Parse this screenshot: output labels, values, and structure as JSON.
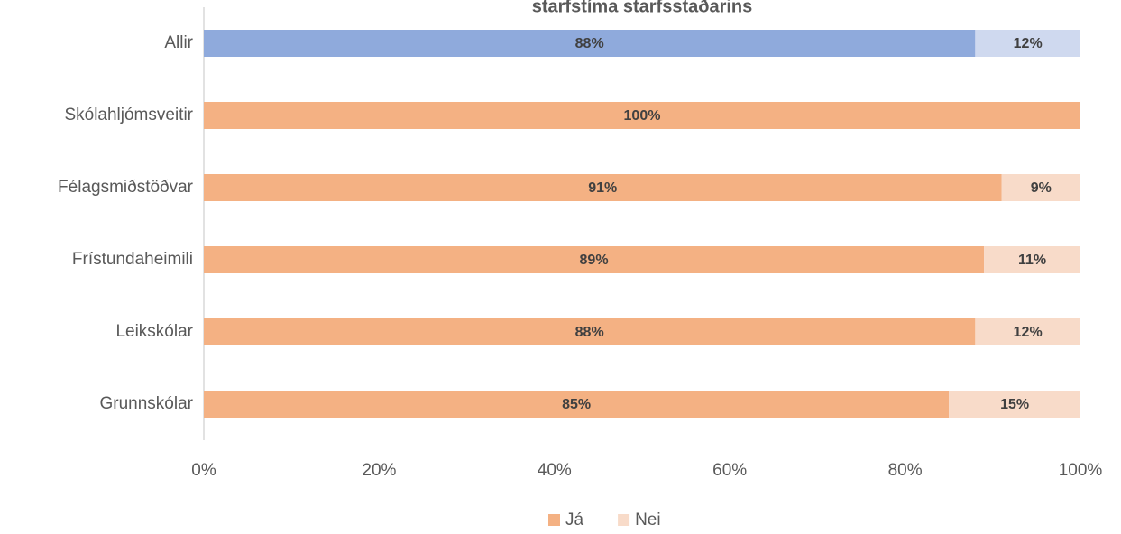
{
  "chart_data": {
    "type": "stacked_barh",
    "title": "starfstíma starfsstaðarins",
    "categories": [
      "Allir",
      "Skólahljómsveitir",
      "Félagsmiðstöðvar",
      "Frístundaheimili",
      "Leikskólar",
      "Grunnskólar"
    ],
    "series": [
      {
        "name": "Já",
        "color": "#f4b183",
        "colors": [
          "#8faadc",
          "#f4b183",
          "#f4b183",
          "#f4b183",
          "#f4b183",
          "#f4b183"
        ],
        "values": [
          88,
          100,
          91,
          89,
          88,
          85
        ],
        "value_labels": [
          "88%",
          "100%",
          "91%",
          "89%",
          "88%",
          "85%"
        ]
      },
      {
        "name": "Nei",
        "color": "#f8dbc9",
        "colors": [
          "#cfd9ef",
          "#f8dbc9",
          "#f8dbc9",
          "#f8dbc9",
          "#f8dbc9",
          "#f8dbc9"
        ],
        "values": [
          12,
          0,
          9,
          11,
          12,
          15
        ],
        "value_labels": [
          "12%",
          null,
          "9%",
          "11%",
          "12%",
          "15%"
        ]
      }
    ],
    "xlim": [
      0,
      100
    ],
    "xticks": [
      {
        "value": 0,
        "label": "0%"
      },
      {
        "value": 20,
        "label": "20%"
      },
      {
        "value": 40,
        "label": "40%"
      },
      {
        "value": 60,
        "label": "60%"
      },
      {
        "value": 80,
        "label": "80%"
      },
      {
        "value": 100,
        "label": "100%"
      }
    ],
    "legend": "bottom"
  }
}
